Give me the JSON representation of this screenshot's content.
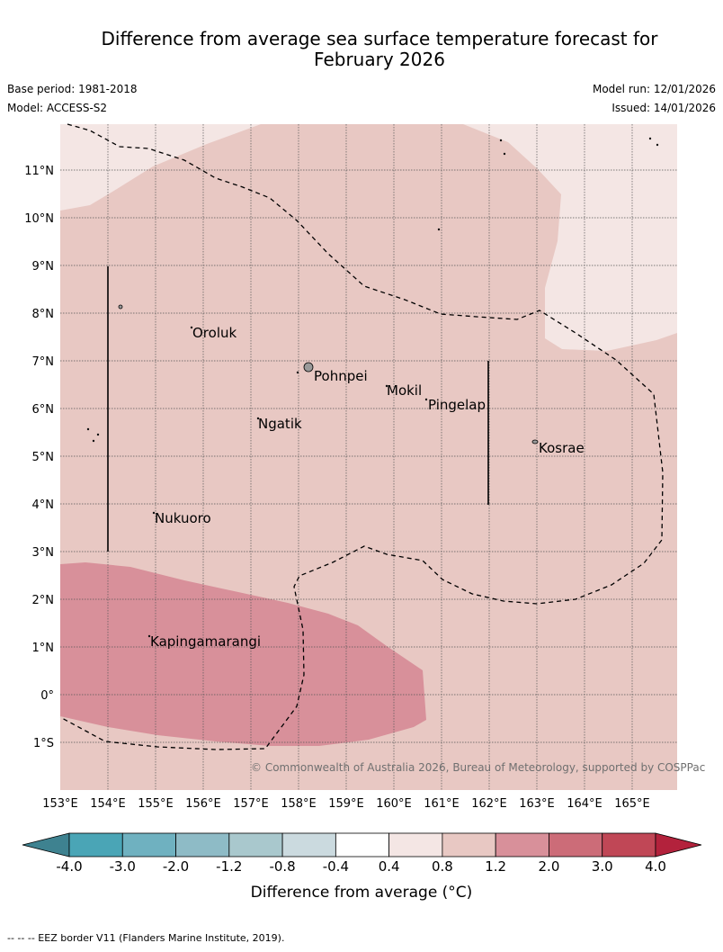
{
  "title": {
    "line1": "Difference from average sea surface temperature forecast for",
    "line2": "February 2026"
  },
  "meta": {
    "base_period": "Base period: 1981-2018",
    "model": "Model: ACCESS-S2",
    "model_run": "Model run: 12/01/2026",
    "issued": "Issued: 14/01/2026"
  },
  "axes": {
    "lon_labels": [
      "153°E",
      "154°E",
      "155°E",
      "156°E",
      "157°E",
      "158°E",
      "159°E",
      "160°E",
      "161°E",
      "162°E",
      "163°E",
      "164°E",
      "165°E"
    ],
    "lat_labels": [
      "11°N",
      "10°N",
      "9°N",
      "8°N",
      "7°N",
      "6°N",
      "5°N",
      "4°N",
      "3°N",
      "2°N",
      "1°N",
      "0°",
      "1°S"
    ]
  },
  "places": [
    {
      "name": "Oroluk",
      "lon": 155.8,
      "lat": 7.6
    },
    {
      "name": "Pohnpei",
      "lon": 158.2,
      "lat": 6.9
    },
    {
      "name": "Mokil",
      "lon": 159.8,
      "lat": 6.7
    },
    {
      "name": "Pingelap",
      "lon": 160.7,
      "lat": 6.2
    },
    {
      "name": "Ngatik",
      "lon": 157.1,
      "lat": 5.8
    },
    {
      "name": "Kosrae",
      "lon": 163.0,
      "lat": 5.3
    },
    {
      "name": "Nukuoro",
      "lon": 155.0,
      "lat": 3.85
    },
    {
      "name": "Kapingamarangi",
      "lon": 154.8,
      "lat": 1.1
    }
  ],
  "copyright": "© Commonwealth of Australia 2026, Bureau of Meteorology, supported by COSPPac",
  "legend": {
    "label": "Difference from average (°C)",
    "ticks": [
      "-4.0",
      "-3.0",
      "-2.0",
      "-1.2",
      "-0.8",
      "-0.4",
      "0.4",
      "0.8",
      "1.2",
      "2.0",
      "3.0",
      "4.0"
    ],
    "colors": [
      "#4aa5b6",
      "#6fb1c0",
      "#8ebbc6",
      "#a9c8cd",
      "#cbdadf",
      "#ffffff",
      "#f4e6e4",
      "#e8c8c3",
      "#d8909a",
      "#cc6c78",
      "#c04756"
    ],
    "under_color": "#3e8290",
    "over_color": "#b3223c"
  },
  "footnote": "--  --  -- EEZ border V11 (Flanders Marine Institute, 2019).",
  "colors": {
    "base_anomaly": "#e8c8c3",
    "light_anomaly": "#f4e6e4",
    "strong_anomaly": "#d8909a"
  }
}
